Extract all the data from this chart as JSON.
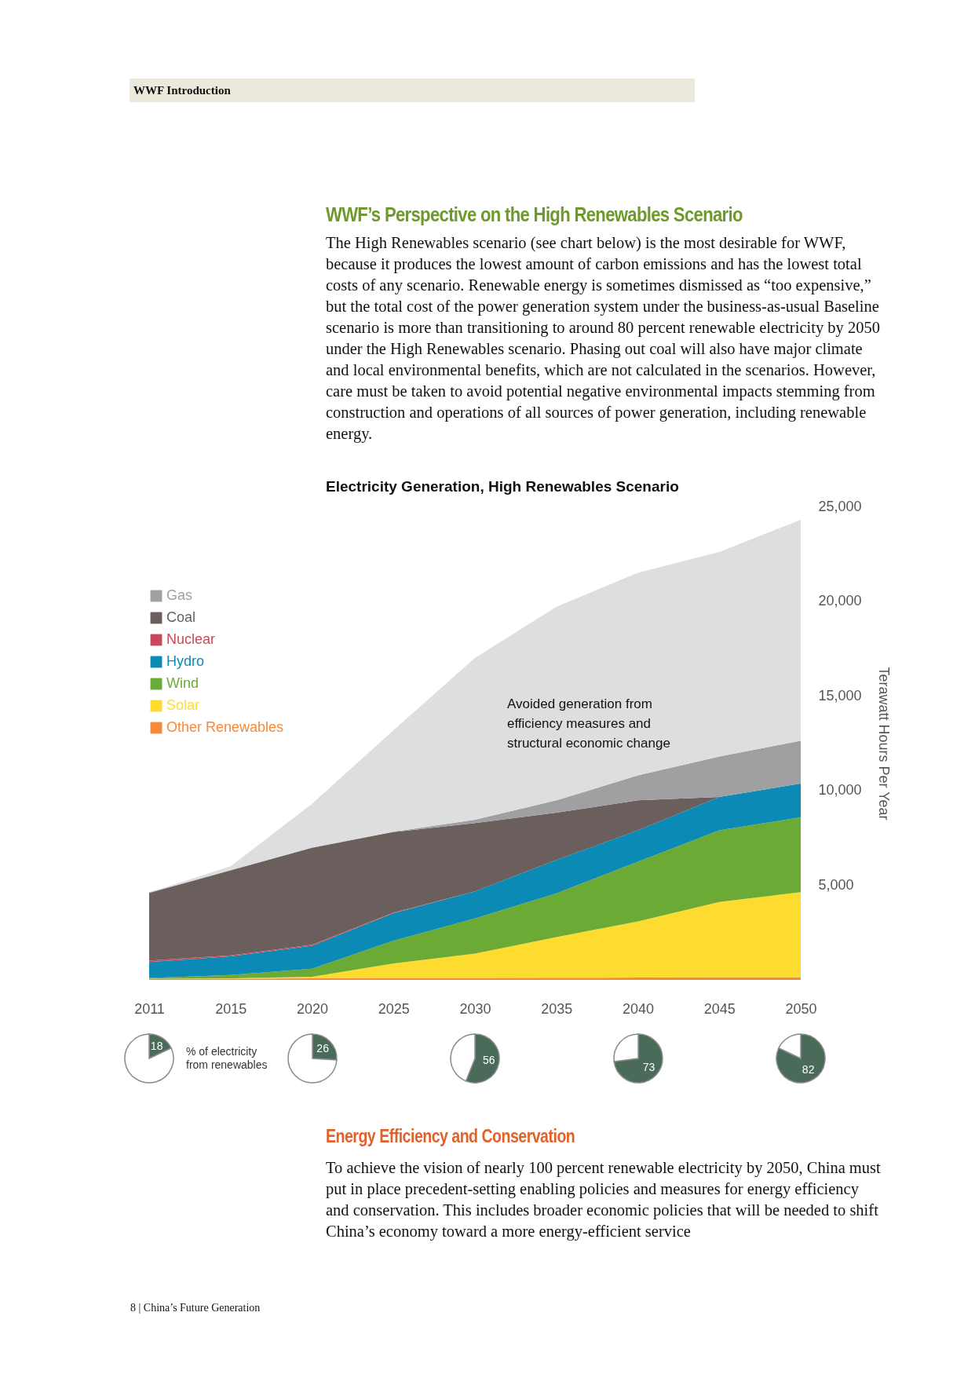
{
  "chart_data": [
    {
      "type": "area",
      "stacked": true,
      "title": "Electricity Generation, High Renewables Scenario",
      "ylabel": "Terawatt Hours Per Year",
      "categories": [
        "2011",
        "2015",
        "2020",
        "2025",
        "2030",
        "2035",
        "2040",
        "2045",
        "2050"
      ],
      "series": [
        {
          "name": "Other Renewables",
          "color": "#f58a3a",
          "values": [
            50,
            60,
            80,
            100,
            100,
            110,
            120,
            130,
            140
          ]
        },
        {
          "name": "Solar",
          "color": "#fddc2f",
          "values": [
            10,
            20,
            90,
            770,
            1290,
            2150,
            2970,
            3980,
            4490
          ]
        },
        {
          "name": "Wind",
          "color": "#6aaa35",
          "values": [
            40,
            180,
            420,
            1200,
            1850,
            2310,
            3150,
            3790,
            3960
          ]
        },
        {
          "name": "Hydro",
          "color": "#0a8ab4",
          "values": [
            840,
            980,
            1210,
            1450,
            1430,
            1760,
            1660,
            1760,
            1780
          ]
        },
        {
          "name": "Nuclear",
          "color": "#c8485a",
          "values": [
            80,
            60,
            60,
            40,
            0,
            0,
            0,
            0,
            0
          ]
        },
        {
          "name": "Coal",
          "color": "#6a5f5c",
          "values": [
            3570,
            4480,
            5120,
            4250,
            3610,
            2500,
            1580,
            0,
            0
          ]
        },
        {
          "name": "Gas",
          "color": "#a0a0a3",
          "values": [
            30,
            20,
            20,
            20,
            180,
            650,
            1320,
            2140,
            2260
          ]
        },
        {
          "color": "#dedede",
          "values": [
            0,
            200,
            2300,
            5350,
            8540,
            10220,
            10700,
            10800,
            11670
          ]
        }
      ],
      "ylim": [
        0,
        25000
      ],
      "yticks": [
        {
          "value": 5000,
          "label": "5,000"
        },
        {
          "value": 10000,
          "label": "10,000"
        },
        {
          "value": 15000,
          "label": "15,000"
        },
        {
          "value": 20000,
          "label": "20,000"
        },
        {
          "value": 25000,
          "label": "25,000"
        }
      ],
      "legend": "top left",
      "annotations": [
        "WWF Introduction",
        "WWF’s Perspective on the High Renewables Scenario",
        "The High Renewables scenario (see chart below) is the most desirable for WWF, because it produces the lowest amount of carbon emissions and has the lowest total costs of any scenario. Renewable energy is sometimes dismissed as “too expensive,” but the total cost of the power generation system under the business-as-usual Baseline scenario is more than transitioning to around 80 percent renewable electricity by 2050 under the High Renewables scenario. Phasing out coal will also have major climate and local environmental benefits, which are not calculated in the scenarios. However, care must be taken to avoid potential negative environmental impacts stemming from construction and operations of all sources of power generation, including renewable energy.",
        "Energy Efficiency and Conservation",
        "To achieve the vision of nearly 100 percent renewable electricity by 2050, China must put in place precedent-setting enabling policies and measures for energy efficiency and conservation. This includes broader economic policies that will be needed to shift China’s economy toward a more energy-efficient service",
        "8 | China’s Future Generation",
        "Avoided generation from efficiency measures and structural economic change"
      ]
    },
    {
      "type": "pie",
      "categories": [
        null,
        null
      ],
      "values": [
        18,
        82
      ],
      "colors": [
        "#4a6b5a",
        "#ffffff"
      ],
      "value_labels": [
        "18",
        null
      ],
      "annotations": [
        "% of electricity from renewables"
      ]
    },
    {
      "type": "pie",
      "categories": [
        null,
        null
      ],
      "values": [
        26,
        74
      ],
      "colors": [
        "#4a6b5a",
        "#ffffff"
      ],
      "value_labels": [
        "26",
        null
      ]
    },
    {
      "type": "pie",
      "categories": [
        null,
        null
      ],
      "values": [
        56,
        44
      ],
      "colors": [
        "#4a6b5a",
        "#ffffff"
      ],
      "value_labels": [
        "56",
        null
      ]
    },
    {
      "type": "pie",
      "categories": [
        null,
        null
      ],
      "values": [
        73,
        27
      ],
      "colors": [
        "#4a6b5a",
        "#ffffff"
      ],
      "value_labels": [
        "73",
        null
      ]
    },
    {
      "type": "pie",
      "categories": [
        null,
        null
      ],
      "values": [
        82,
        18
      ],
      "colors": [
        "#4a6b5a",
        "#ffffff"
      ],
      "value_labels": [
        "82",
        null
      ]
    }
  ]
}
